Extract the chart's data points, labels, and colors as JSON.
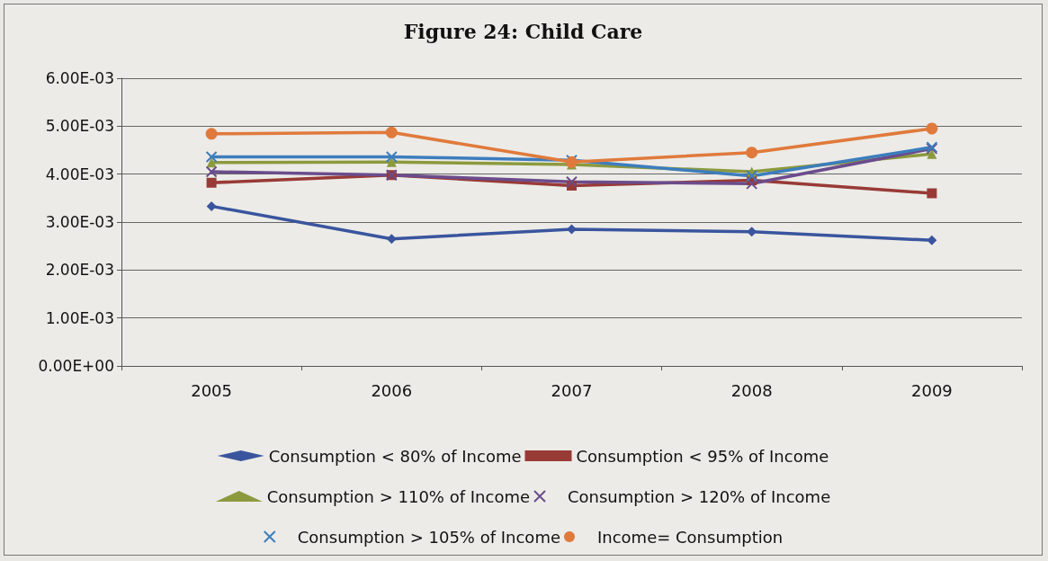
{
  "chart_data": {
    "type": "line",
    "title": "Figure 24: Child Care",
    "categories": [
      "2005",
      "2006",
      "2007",
      "2008",
      "2009"
    ],
    "ylim": [
      0,
      0.006
    ],
    "yticks": [
      {
        "value": 0,
        "label": "0.00E+00"
      },
      {
        "value": 0.001,
        "label": "1.00E-03"
      },
      {
        "value": 0.002,
        "label": "2.00E-03"
      },
      {
        "value": 0.003,
        "label": "3.00E-03"
      },
      {
        "value": 0.004,
        "label": "4.00E-03"
      },
      {
        "value": 0.005,
        "label": "5.00E-03"
      },
      {
        "value": 0.006,
        "label": "6.00E-03"
      }
    ],
    "grid": "y",
    "legend": "bottom",
    "series": [
      {
        "name": "Consumption < 80% of Income",
        "color": "#3a559e",
        "marker": "diamond",
        "values": [
          0.00333,
          0.00265,
          0.00285,
          0.0028,
          0.00262
        ]
      },
      {
        "name": "Consumption < 95% of Income",
        "color": "#983a36",
        "marker": "square",
        "values": [
          0.00382,
          0.00398,
          0.00376,
          0.00387,
          0.0036
        ]
      },
      {
        "name": "Consumption > 110% of Income",
        "color": "#8c9a3e",
        "marker": "triangle",
        "values": [
          0.00424,
          0.00425,
          0.0042,
          0.00405,
          0.00442
        ]
      },
      {
        "name": "Consumption > 120% of Income",
        "color": "#6b4c8c",
        "marker": "cross",
        "values": [
          0.00405,
          0.00398,
          0.00384,
          0.0038,
          0.00453
        ]
      },
      {
        "name": "Consumption > 105% of Income",
        "color": "#3d7dbd",
        "marker": "cross",
        "values": [
          0.00436,
          0.00436,
          0.00429,
          0.00396,
          0.00456
        ]
      },
      {
        "name": "Income= Consumption",
        "color": "#e07a3c",
        "marker": "circle",
        "values": [
          0.00484,
          0.00487,
          0.00425,
          0.00445,
          0.00495
        ]
      }
    ]
  }
}
